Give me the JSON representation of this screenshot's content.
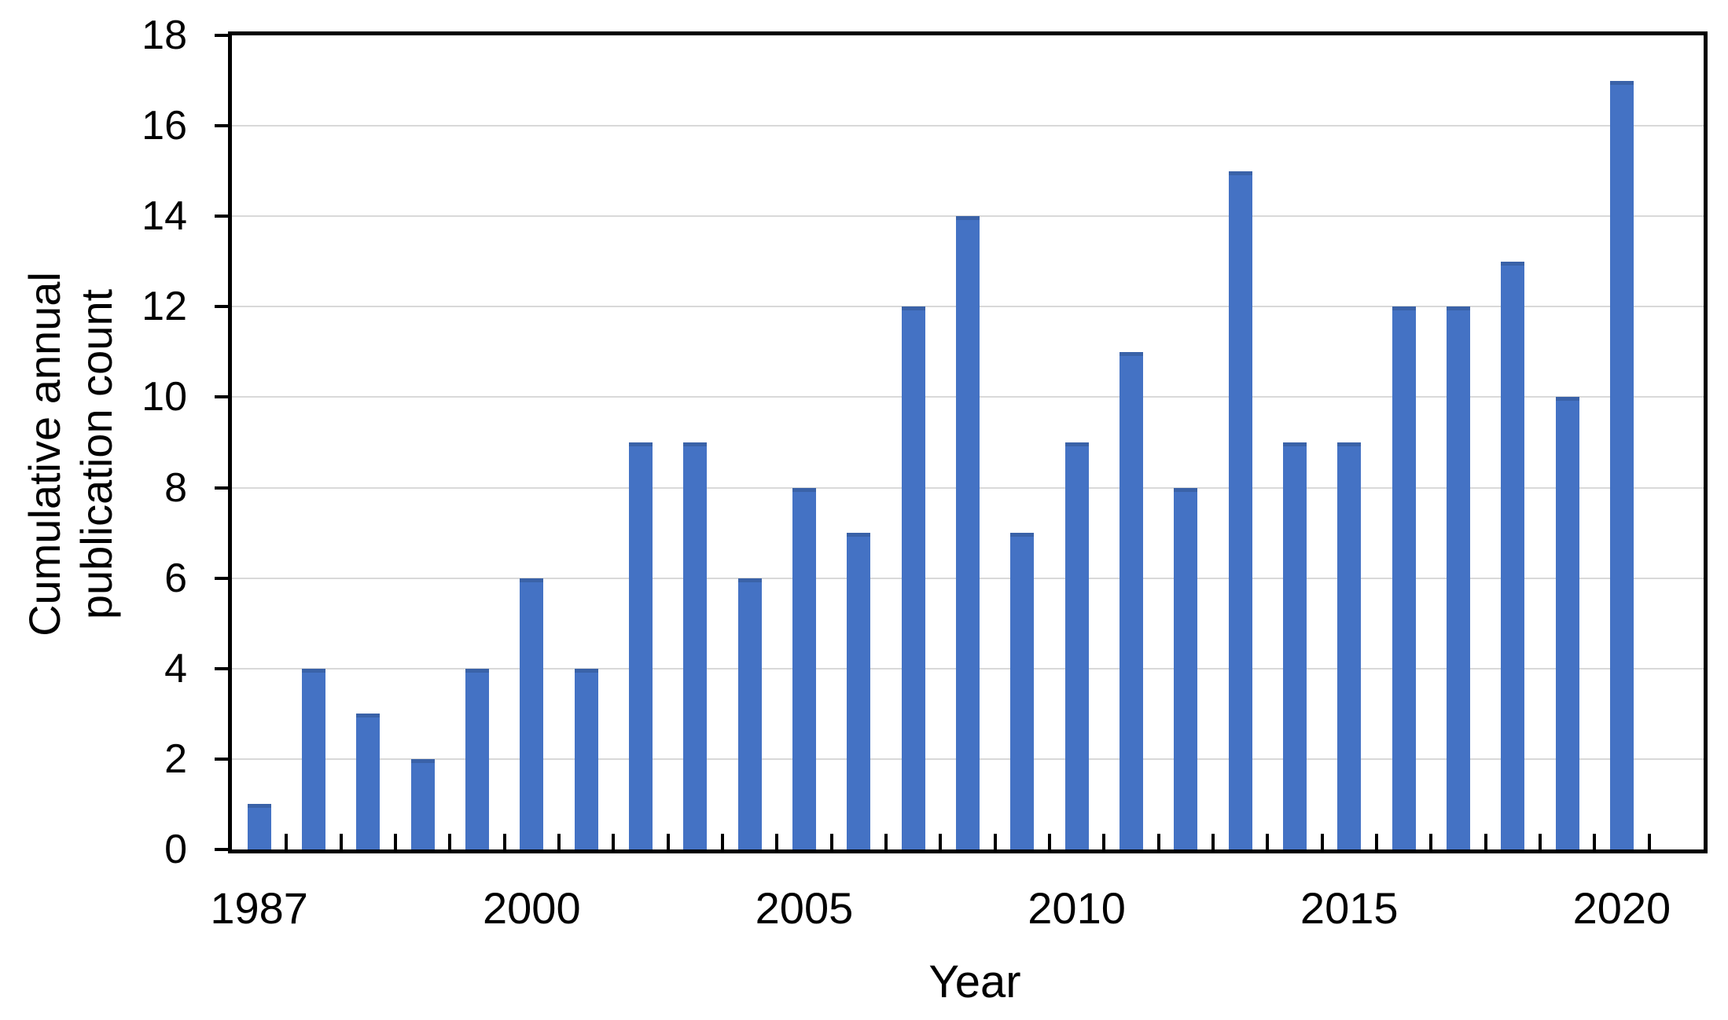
{
  "chart_data": {
    "type": "bar",
    "title": "",
    "xlabel": "Year",
    "ylabel_lines": [
      "Cumulative annual",
      "publication count"
    ],
    "bar_count": 26,
    "values": [
      1,
      4,
      3,
      2,
      4,
      6,
      4,
      9,
      9,
      6,
      8,
      7,
      12,
      14,
      7,
      9,
      11,
      8,
      15,
      9,
      9,
      12,
      12,
      13,
      10,
      17
    ],
    "x_tick_labels": [
      "1987",
      "2000",
      "2005",
      "2010",
      "2015",
      "2020"
    ],
    "x_tick_bar_indices": [
      0,
      5,
      10,
      15,
      20,
      25
    ],
    "trailing_empty_slots": 1,
    "ylim": [
      0,
      18
    ],
    "y_tick_step": 2,
    "y_tick_labels": [
      "0",
      "2",
      "4",
      "6",
      "8",
      "10",
      "12",
      "14",
      "16",
      "18"
    ],
    "grid": true,
    "legend": false,
    "colors": {
      "bar": "#4472C4",
      "bar_cap": "#3A62A8",
      "gridline": "#D9D9D9",
      "axis": "#000000",
      "text": "#000000",
      "background": "#FFFFFF"
    }
  }
}
